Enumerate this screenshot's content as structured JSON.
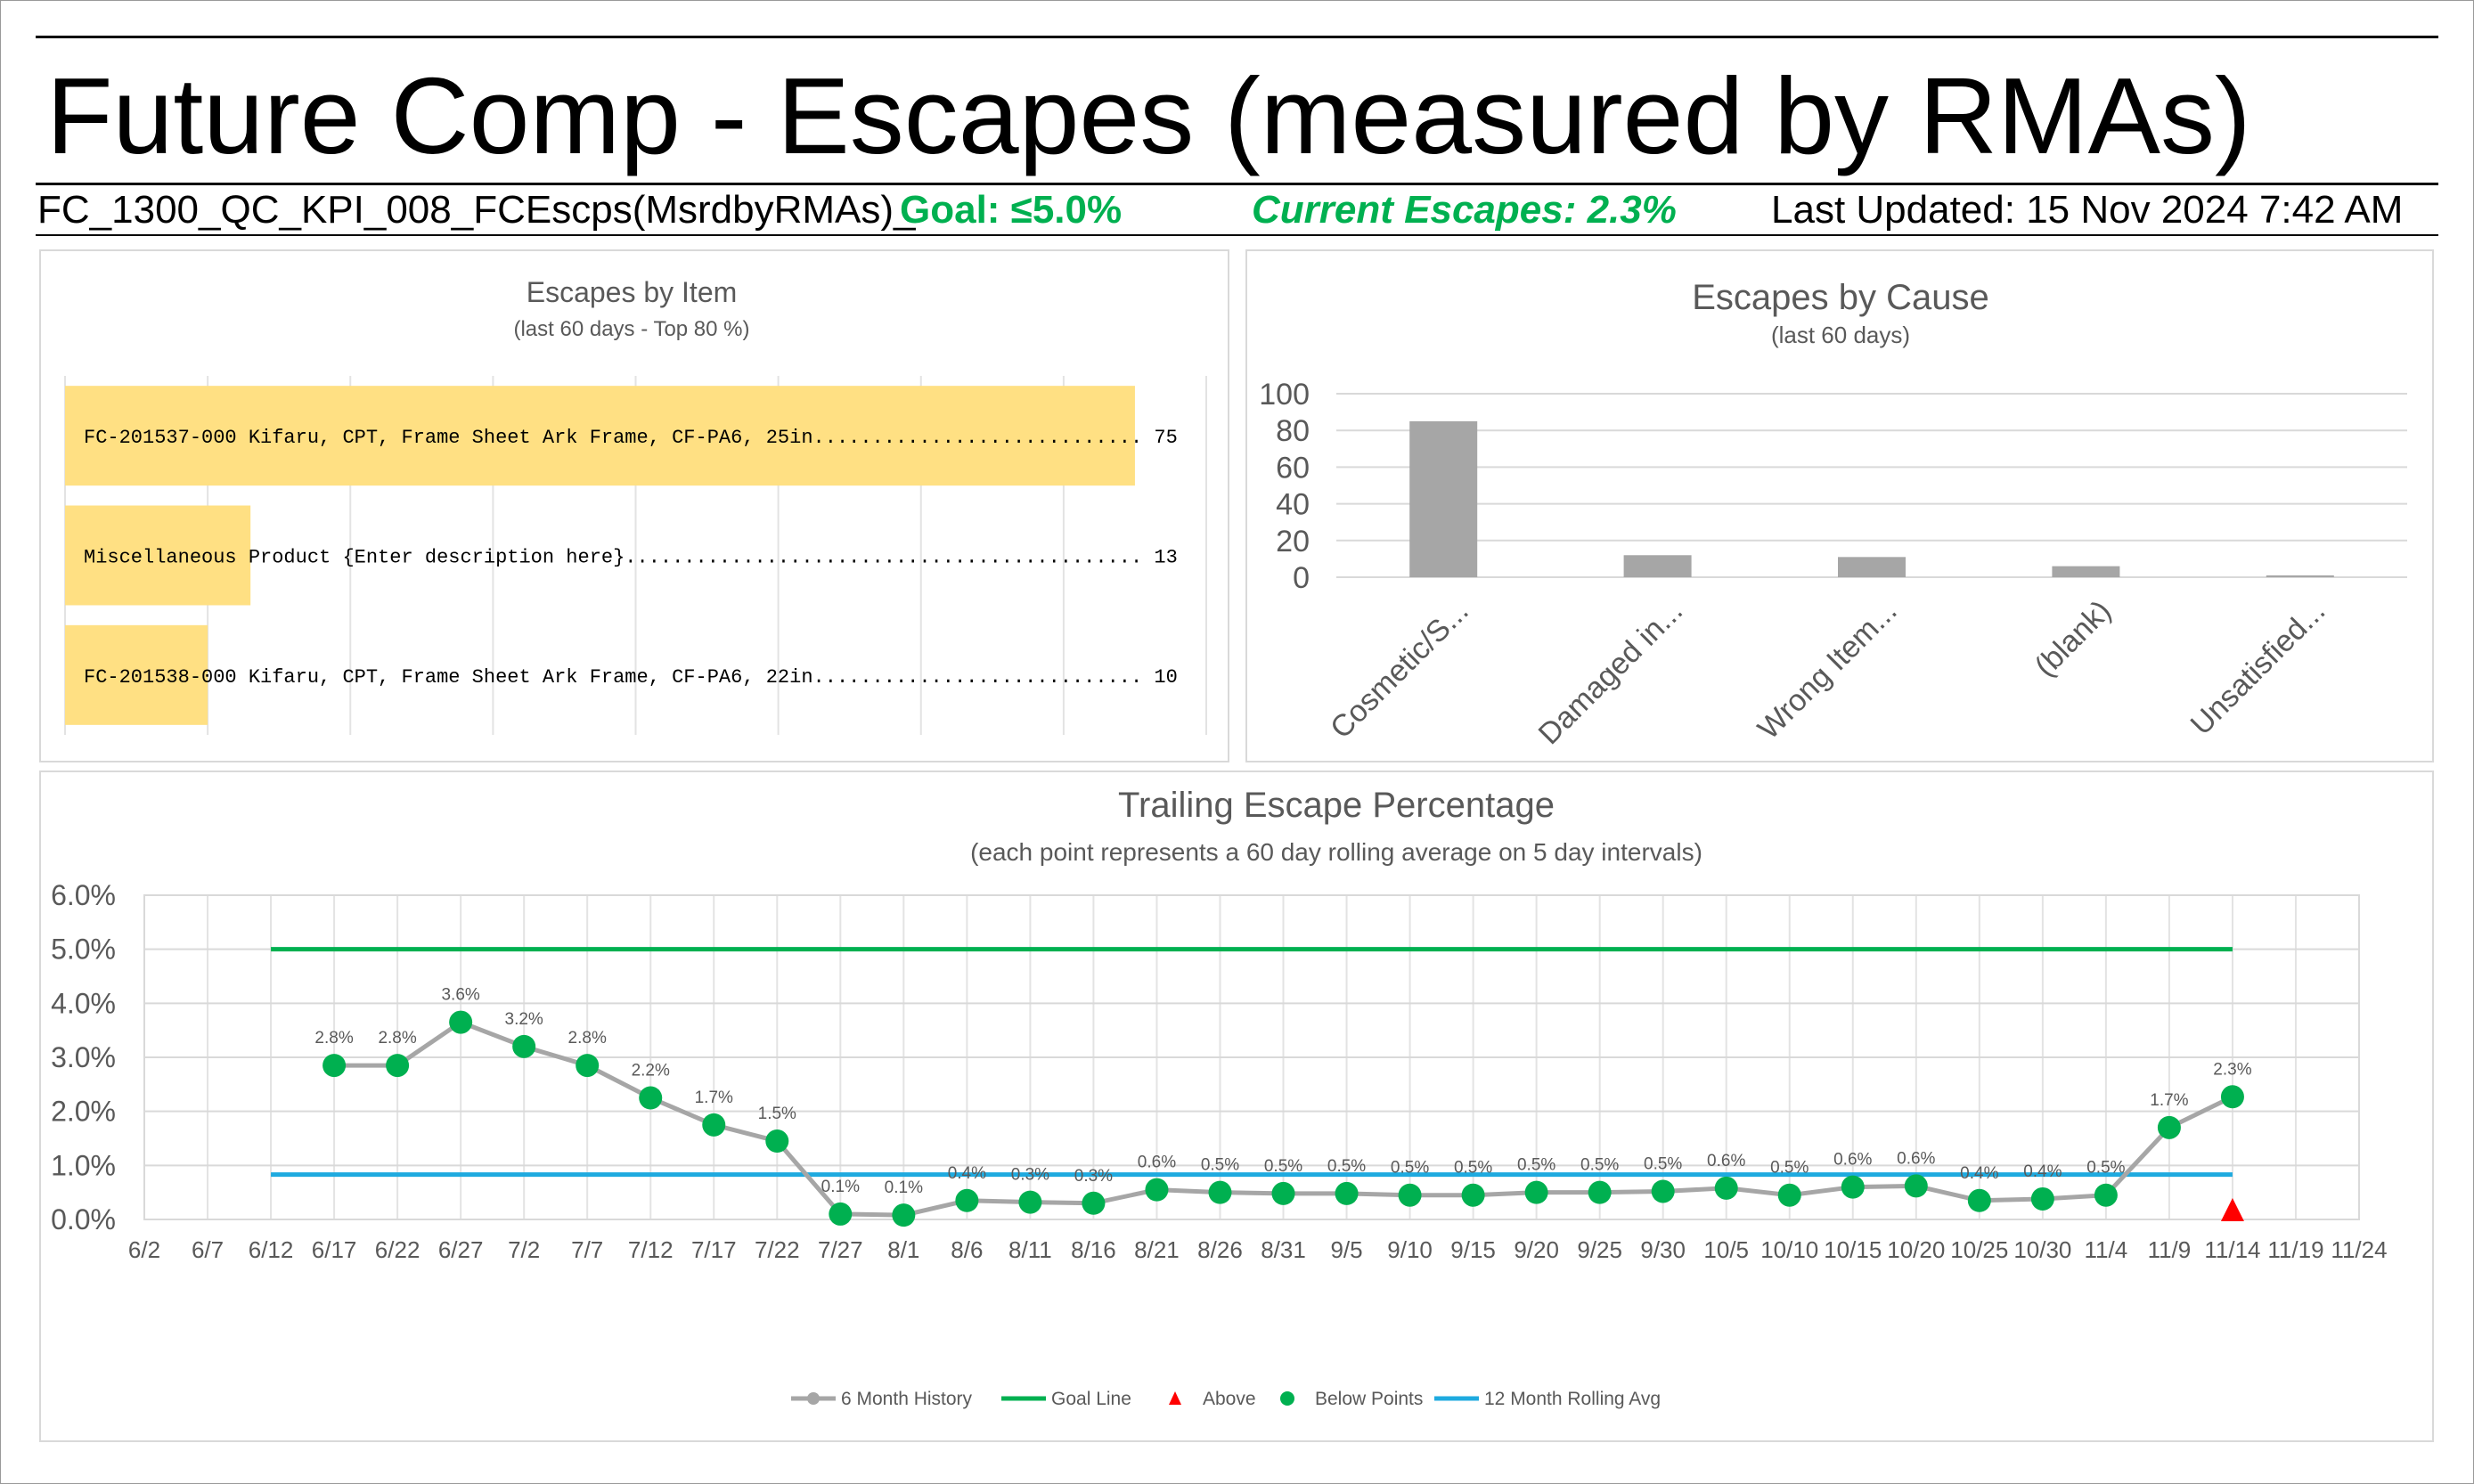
{
  "header": {
    "title": "Future Comp - Escapes (measured by RMAs)",
    "report_id": "FC_1300_QC_KPI_008_FCEscps(MsrdbyRMAs)_",
    "goal": "Goal: ≤5.0%",
    "current": "Current Escapes: 2.3%",
    "updated": "Last Updated: 15 Nov 2024 7:42 AM"
  },
  "colors": {
    "bar_yellow": "#ffe083",
    "bar_gray": "#a6a6a6",
    "goal_green": "#00b050",
    "rolling_blue": "#1eaadf",
    "history_gray": "#a6a6a6",
    "point_green": "#00b050",
    "above_red": "#ff0000"
  },
  "chart_data": [
    {
      "type": "bar",
      "orientation": "horizontal",
      "title": "Escapes by Item",
      "subtitle": "(last 60 days - Top 80 %)",
      "categories": [
        "FC-201537-000 Kifaru, CPT, Frame Sheet Ark Frame, CF-PA6, 25in............................ 75",
        "Miscellaneous Product {Enter description here}............................................ 13",
        "FC-201538-000 Kifaru, CPT, Frame Sheet Ark Frame, CF-PA6, 22in............................ 10"
      ],
      "values": [
        75,
        13,
        10
      ],
      "xlim": [
        0,
        80
      ],
      "grid": true
    },
    {
      "type": "bar",
      "title": "Escapes by Cause",
      "subtitle": "(last 60 days)",
      "categories": [
        "Cosmetic/S...",
        "Damaged in...",
        "Wrong Item...",
        "(blank)",
        "Unsatisfied..."
      ],
      "values": [
        85,
        12,
        11,
        6,
        1
      ],
      "ylim": [
        0,
        100
      ],
      "yticks": [
        "0",
        "20",
        "40",
        "60",
        "80",
        "100"
      ],
      "grid": true
    },
    {
      "type": "line",
      "title": "Trailing Escape Percentage",
      "subtitle": "(each point represents a 60 day rolling average on 5 day intervals)",
      "x_ticks": [
        "6/2",
        "6/7",
        "6/12",
        "6/17",
        "6/22",
        "6/27",
        "7/2",
        "7/7",
        "7/12",
        "7/17",
        "7/22",
        "7/27",
        "8/1",
        "8/6",
        "8/11",
        "8/16",
        "8/21",
        "8/26",
        "8/31",
        "9/5",
        "9/10",
        "9/15",
        "9/20",
        "9/25",
        "9/30",
        "10/5",
        "10/10",
        "10/15",
        "10/20",
        "10/25",
        "10/30",
        "11/4",
        "11/9",
        "11/14",
        "11/19",
        "11/24"
      ],
      "y_ticks": [
        "0.0%",
        "1.0%",
        "2.0%",
        "3.0%",
        "4.0%",
        "5.0%",
        "6.0%"
      ],
      "ylim": [
        0,
        6
      ],
      "grid": true,
      "legend_position": "bottom",
      "series": [
        {
          "name": "6 Month History",
          "x": [
            "6/17",
            "6/22",
            "6/27",
            "7/2",
            "7/7",
            "7/12",
            "7/17",
            "7/22",
            "7/27",
            "8/1",
            "8/6",
            "8/11",
            "8/16",
            "8/21",
            "8/26",
            "8/31",
            "9/5",
            "9/10",
            "9/15",
            "9/20",
            "9/25",
            "9/30",
            "10/5",
            "10/10",
            "10/15",
            "10/20",
            "10/25",
            "10/30",
            "11/4",
            "11/9",
            "11/14"
          ],
          "values": [
            2.85,
            2.85,
            3.65,
            3.2,
            2.85,
            2.25,
            1.75,
            1.45,
            0.1,
            0.08,
            0.35,
            0.32,
            0.3,
            0.55,
            0.5,
            0.48,
            0.48,
            0.45,
            0.45,
            0.5,
            0.5,
            0.52,
            0.58,
            0.45,
            0.6,
            0.62,
            0.35,
            0.38,
            0.45,
            1.7,
            2.27
          ],
          "labels": [
            "2.8%",
            "2.8%",
            "3.6%",
            "3.2%",
            "2.8%",
            "2.2%",
            "1.7%",
            "1.5%",
            "0.1%",
            "0.1%",
            "0.4%",
            "0.3%",
            "0.3%",
            "0.6%",
            "0.5%",
            "0.5%",
            "0.5%",
            "0.5%",
            "0.5%",
            "0.5%",
            "0.5%",
            "0.5%",
            "0.6%",
            "0.5%",
            "0.6%",
            "0.6%",
            "0.4%",
            "0.4%",
            "0.5%",
            "1.7%",
            "2.3%"
          ]
        },
        {
          "name": "Goal Line",
          "x": [
            "6/12",
            "11/14"
          ],
          "values": [
            5.0,
            5.0
          ]
        },
        {
          "name": "Above",
          "x": [
            "11/14"
          ],
          "values": [
            0
          ]
        },
        {
          "name": "Below Points",
          "note_same_as": "6 Month History"
        },
        {
          "name": "12 Month Rolling Avg",
          "x": [
            "6/12",
            "11/14"
          ],
          "values": [
            0.83,
            0.83
          ]
        }
      ]
    }
  ]
}
